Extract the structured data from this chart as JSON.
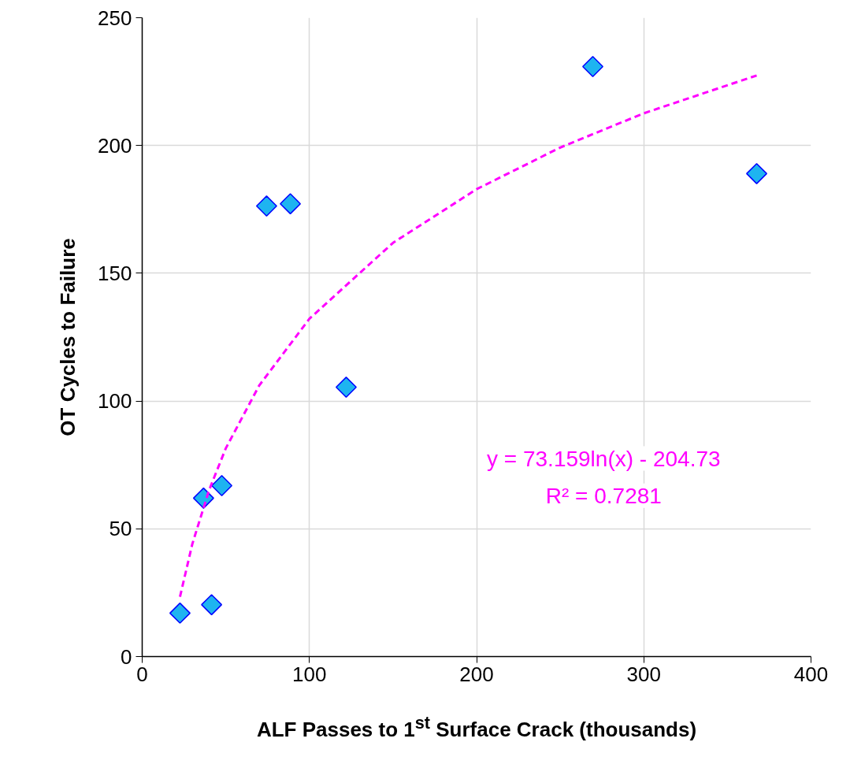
{
  "chart_data": {
    "type": "scatter",
    "xlabel": "ALF Passes to 1$^{st}$ Surface Crack (thousands)",
    "ylabel": "OT Cycles to Failure",
    "xlim": [
      0,
      400
    ],
    "xticks": [
      0,
      100,
      200,
      300,
      400
    ],
    "ylim": [
      0,
      250
    ],
    "yticks": [
      0,
      50,
      100,
      150,
      200,
      250
    ],
    "grid": true,
    "series": [
      {
        "marker": "diamond",
        "color": "#1eb4f0",
        "x": [
          22.6,
          41.5,
          36.7,
          47.6,
          74.4,
          88.6,
          122,
          269.5,
          367.5
        ],
        "values": [
          17,
          20.3,
          62,
          66.9,
          176.3,
          177.2,
          105.4,
          230.9,
          189
        ]
      },
      {
        "type": "line",
        "line_style": "dashed",
        "color": "#ff00ff",
        "x": [
          22.6,
          30,
          40,
          50,
          70,
          100,
          150,
          200,
          250,
          300,
          367.5
        ],
        "values": [
          23.4,
          44.1,
          65.1,
          81.5,
          106.1,
          132.2,
          161.9,
          182.9,
          199.2,
          212.6,
          227.4
        ]
      }
    ],
    "annotations": [
      "y = 73.159ln(x) - 204.73",
      "R² = 0.7281"
    ]
  }
}
